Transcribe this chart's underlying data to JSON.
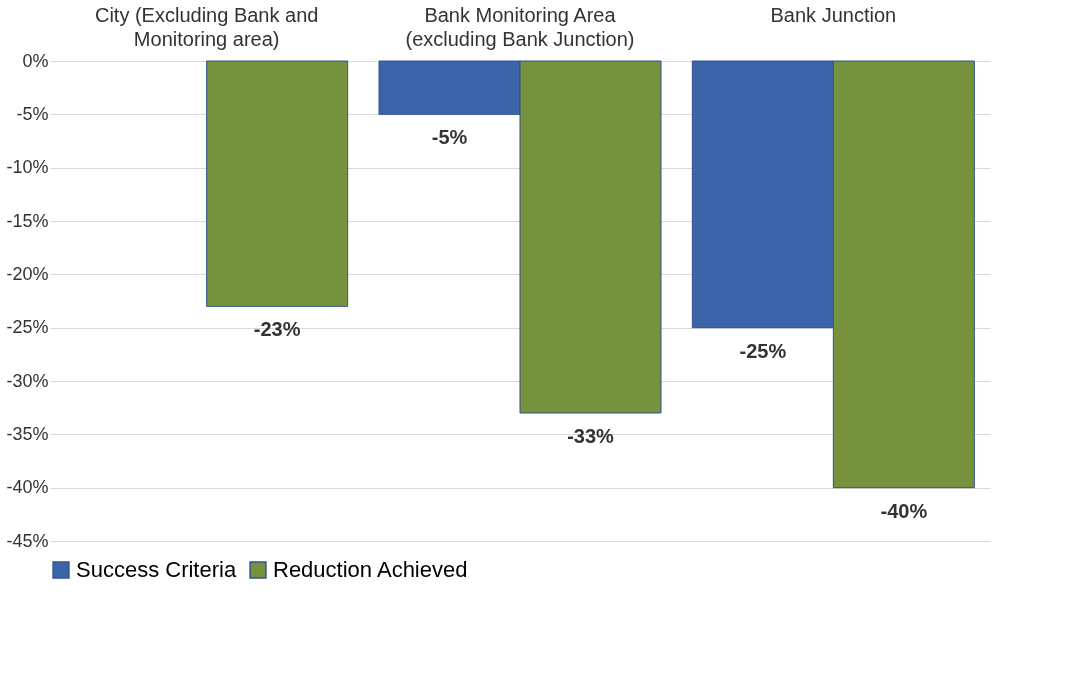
{
  "chart_data": {
    "type": "bar",
    "categories": [
      "City (Excluding Bank and Monitoring area)",
      "Bank Monitoring Area (excluding Bank Junction)",
      "Bank Junction"
    ],
    "series": [
      {
        "name": "Success Criteria",
        "color": "#3d64a8",
        "values": [
          null,
          -5,
          -25
        ],
        "value_labels": [
          null,
          "-5%",
          "-25%"
        ]
      },
      {
        "name": "Reduction Achieved",
        "color": "#76923c",
        "values": [
          -23,
          -33,
          -40
        ],
        "value_labels": [
          "-23%",
          "-33%",
          "-40%"
        ]
      }
    ],
    "ylim": [
      -45,
      0
    ],
    "yticks": [
      {
        "value": 0,
        "label": "0%"
      },
      {
        "value": -5,
        "label": "-5%"
      },
      {
        "value": -10,
        "label": "-10%"
      },
      {
        "value": -15,
        "label": "-15%"
      },
      {
        "value": -20,
        "label": "-20%"
      },
      {
        "value": -25,
        "label": "-25%"
      },
      {
        "value": -30,
        "label": "-30%"
      },
      {
        "value": -35,
        "label": "-35%"
      },
      {
        "value": -40,
        "label": "-40%"
      },
      {
        "value": -45,
        "label": "-45%"
      }
    ],
    "grid": "y",
    "legend": "bottom"
  }
}
